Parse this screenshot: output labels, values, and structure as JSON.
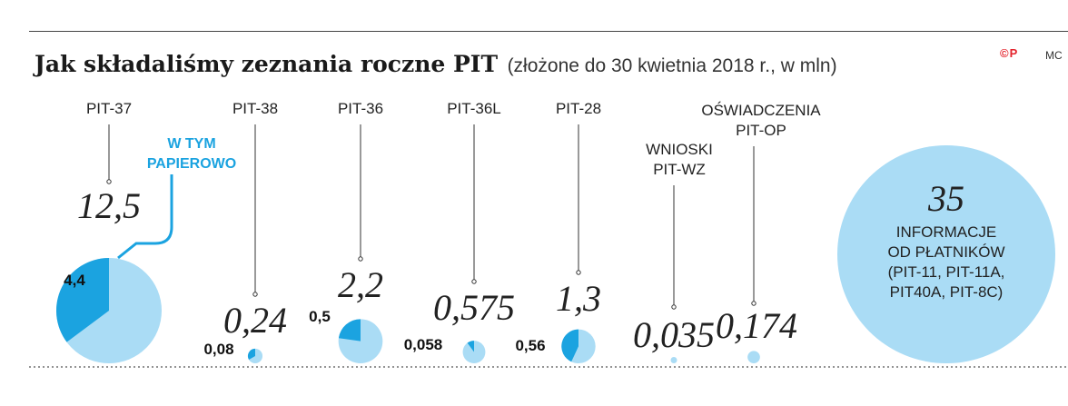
{
  "title": {
    "main": "Jak składaliśmy zeznania roczne PIT",
    "sub": "(złożone do 30 kwietnia 2018 r., w mln)"
  },
  "credit": {
    "logo": "©P",
    "initials": "MC"
  },
  "chart_data": {
    "type": "pie",
    "unit": "mln",
    "colors": {
      "total": "#aadcf5",
      "paper": "#1ba3e0"
    },
    "legend": "W TYM PAPIEROWO",
    "categories": [
      "PIT-37",
      "PIT-38",
      "PIT-36",
      "PIT-36L",
      "PIT-28",
      "WNIOSKI PIT-WZ",
      "OŚWIADCZENIA PIT-OP",
      "INFORMACJE OD PŁATNIKÓW (PIT-11, PIT-11A, PIT40A, PIT-8C)"
    ],
    "series": [
      {
        "name": "W TYM PAPIEROWO",
        "values": [
          4.4,
          0.08,
          0.5,
          0.058,
          0.56,
          null,
          null,
          null
        ]
      }
    ],
    "items": [
      {
        "label": "PIT-37",
        "label_lines": [
          "PIT-37"
        ],
        "total": 12.5,
        "total_label": "12,5",
        "paper": 4.4,
        "paper_label": "4,4"
      },
      {
        "label": "PIT-38",
        "label_lines": [
          "PIT-38"
        ],
        "total": 0.24,
        "total_label": "0,24",
        "paper": 0.08,
        "paper_label": "0,08"
      },
      {
        "label": "PIT-36",
        "label_lines": [
          "PIT-36"
        ],
        "total": 2.2,
        "total_label": "2,2",
        "paper": 0.5,
        "paper_label": "0,5"
      },
      {
        "label": "PIT-36L",
        "label_lines": [
          "PIT-36L"
        ],
        "total": 0.575,
        "total_label": "0,575",
        "paper": 0.058,
        "paper_label": "0,058"
      },
      {
        "label": "PIT-28",
        "label_lines": [
          "PIT-28"
        ],
        "total": 1.3,
        "total_label": "1,3",
        "paper": 0.56,
        "paper_label": "0,56"
      },
      {
        "label": "WNIOSKI PIT-WZ",
        "label_lines": [
          "WNIOSKI",
          "PIT-WZ"
        ],
        "total": 0.035,
        "total_label": "0,035",
        "paper": null,
        "paper_label": ""
      },
      {
        "label": "OŚWIADCZENIA PIT-OP",
        "label_lines": [
          "OŚWIADCZENIA",
          "PIT-OP"
        ],
        "total": 0.174,
        "total_label": "0,174",
        "paper": null,
        "paper_label": ""
      }
    ],
    "big": {
      "total": 35,
      "total_label": "35",
      "label_lines": [
        "INFORMACJE",
        "OD PŁATNIKÓW",
        "(PIT-11, PIT-11A,",
        "PIT40A, PIT-8C)"
      ]
    }
  }
}
